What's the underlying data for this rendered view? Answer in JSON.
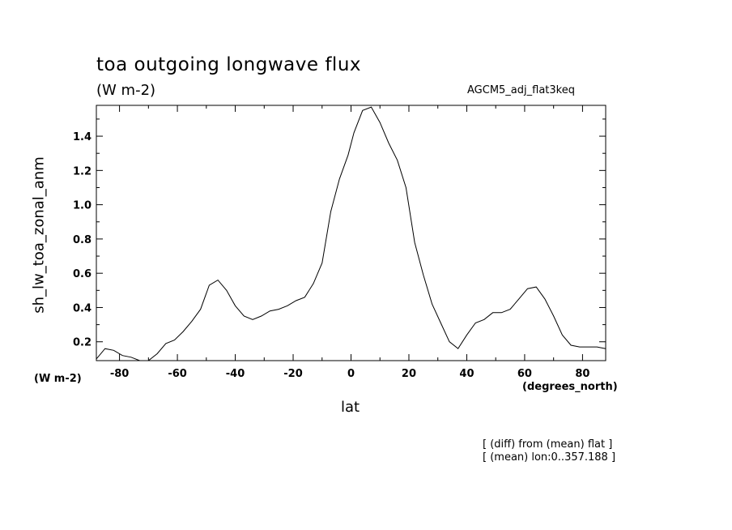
{
  "chart_data": {
    "type": "line",
    "title": "toa outgoing longwave flux",
    "units": "(W m-2)",
    "experiment": "AGCM5_adj_flat3keq",
    "ylabel": "sh_lw_toa_zonal_anm",
    "xlabel": "lat",
    "y_units_label": "(W m-2)",
    "x_units_label": "(degrees_north)",
    "notes": [
      "[ (diff) from (mean) flat ]",
      "[ (mean) lon:0..357.188 ]"
    ],
    "xlim": [
      -88,
      88
    ],
    "ylim": [
      0.09,
      1.58
    ],
    "xticks": [
      -80,
      -60,
      -40,
      -20,
      0,
      20,
      40,
      60,
      80
    ],
    "xtick_labels": [
      "-80",
      "-60",
      "-40",
      "-20",
      "0",
      "20",
      "40",
      "60",
      "80"
    ],
    "yticks": [
      0.2,
      0.4,
      0.6,
      0.8,
      1.0,
      1.2,
      1.4
    ],
    "ytick_labels": [
      "0.2",
      "0.4",
      "0.6",
      "0.8",
      "1.0",
      "1.2",
      "1.4"
    ],
    "grid": false,
    "series": [
      {
        "x": [
          -88,
          -85,
          -82,
          -79,
          -76,
          -73,
          -70,
          -67,
          -64,
          -61,
          -58,
          -55,
          -52,
          -49,
          -46,
          -43,
          -40,
          -37,
          -34,
          -31,
          -28,
          -25,
          -22,
          -19,
          -16,
          -13,
          -10,
          -7,
          -4,
          -1,
          1,
          4,
          7,
          10,
          13,
          16,
          19,
          22,
          25,
          28,
          31,
          34,
          37,
          40,
          43,
          46,
          49,
          52,
          55,
          58,
          61,
          64,
          67,
          70,
          73,
          76,
          79,
          82,
          85,
          88
        ],
        "y": [
          0.1,
          0.16,
          0.15,
          0.12,
          0.11,
          0.09,
          0.09,
          0.13,
          0.19,
          0.21,
          0.26,
          0.32,
          0.39,
          0.53,
          0.56,
          0.5,
          0.41,
          0.35,
          0.33,
          0.35,
          0.38,
          0.39,
          0.41,
          0.44,
          0.46,
          0.54,
          0.66,
          0.96,
          1.15,
          1.29,
          1.42,
          1.55,
          1.57,
          1.48,
          1.36,
          1.26,
          1.1,
          0.78,
          0.59,
          0.42,
          0.31,
          0.2,
          0.16,
          0.24,
          0.31,
          0.33,
          0.37,
          0.37,
          0.39,
          0.45,
          0.51,
          0.52,
          0.45,
          0.35,
          0.24,
          0.18,
          0.17,
          0.17,
          0.17,
          0.16
        ]
      }
    ]
  }
}
